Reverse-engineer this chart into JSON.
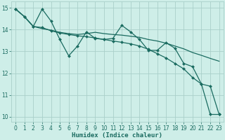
{
  "xlabel": "Humidex (Indice chaleur)",
  "bg_color": "#ceeee8",
  "grid_color": "#aacfca",
  "line_color": "#1a6b60",
  "xlim": [
    -0.5,
    23.5
  ],
  "ylim": [
    9.75,
    15.3
  ],
  "xticks": [
    0,
    1,
    2,
    3,
    4,
    5,
    6,
    7,
    8,
    9,
    10,
    11,
    12,
    13,
    14,
    15,
    16,
    17,
    18,
    19,
    20,
    21,
    22,
    23
  ],
  "yticks": [
    10,
    11,
    12,
    13,
    14,
    15
  ],
  "series1_x": [
    0,
    1,
    2,
    3,
    4,
    5,
    6,
    7,
    8,
    9,
    10,
    11,
    12,
    13,
    14,
    15,
    16,
    17,
    18,
    19,
    20,
    21,
    22,
    23
  ],
  "series1_y": [
    14.95,
    14.6,
    14.15,
    14.95,
    14.4,
    13.55,
    12.8,
    13.25,
    13.9,
    13.6,
    13.55,
    13.6,
    14.2,
    13.9,
    13.55,
    13.05,
    13.05,
    13.4,
    13.15,
    12.45,
    12.3,
    11.5,
    10.1,
    10.1
  ],
  "series2_x": [
    0,
    1,
    2,
    3,
    4,
    5,
    6,
    7,
    8,
    9,
    10,
    11,
    12,
    13,
    14,
    15,
    16,
    17,
    18,
    19,
    20,
    21,
    22,
    23
  ],
  "series2_y": [
    14.95,
    14.6,
    14.15,
    14.05,
    13.98,
    13.88,
    13.82,
    13.78,
    13.82,
    13.88,
    13.82,
    13.78,
    13.75,
    13.7,
    13.65,
    13.55,
    13.48,
    13.38,
    13.25,
    13.12,
    12.95,
    12.82,
    12.68,
    12.55
  ],
  "series3_x": [
    0,
    1,
    2,
    3,
    4,
    5,
    6,
    7,
    8,
    9,
    10,
    11,
    12,
    13,
    14,
    15,
    16,
    17,
    18,
    19,
    20,
    21,
    22,
    23
  ],
  "series3_y": [
    14.95,
    14.6,
    14.15,
    14.1,
    13.95,
    13.85,
    13.78,
    13.72,
    13.68,
    13.62,
    13.55,
    13.48,
    13.42,
    13.35,
    13.25,
    13.1,
    12.9,
    12.7,
    12.45,
    12.2,
    11.8,
    11.5,
    11.4,
    10.1
  ],
  "marker": "D",
  "marker_size": 2.0,
  "line_width": 0.9,
  "tick_fontsize": 5.5,
  "xlabel_fontsize": 6.5
}
